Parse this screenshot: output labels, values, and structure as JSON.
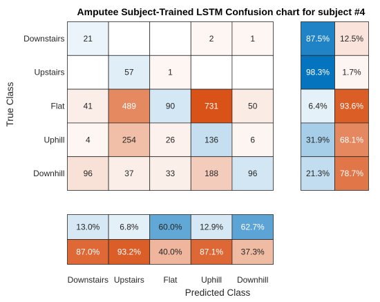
{
  "chart_data": {
    "type": "heatmap",
    "title": "Amputee Subject-Trained LSTM Confusion chart for subject #4",
    "xlabel": "Predicted Class",
    "ylabel": "True Class",
    "classes": [
      "Downstairs",
      "Upstairs",
      "Flat",
      "Uphill",
      "Downhill"
    ],
    "matrix": [
      [
        21,
        null,
        null,
        2,
        1
      ],
      [
        null,
        57,
        1,
        null,
        null
      ],
      [
        41,
        489,
        90,
        731,
        50
      ],
      [
        4,
        254,
        26,
        136,
        6
      ],
      [
        96,
        37,
        33,
        188,
        96
      ]
    ],
    "row_summary": [
      [
        "87.5%",
        "12.5%"
      ],
      [
        "98.3%",
        "1.7%"
      ],
      [
        "6.4%",
        "93.6%"
      ],
      [
        "31.9%",
        "68.1%"
      ],
      [
        "21.3%",
        "78.7%"
      ]
    ],
    "column_summary": [
      [
        "13.0%",
        "6.8%",
        "60.0%",
        "12.9%",
        "62.7%"
      ],
      [
        "87.0%",
        "93.2%",
        "40.0%",
        "87.1%",
        "37.3%"
      ]
    ],
    "colors": {
      "correct": "#0072BD",
      "incorrect": "#D95319"
    }
  }
}
